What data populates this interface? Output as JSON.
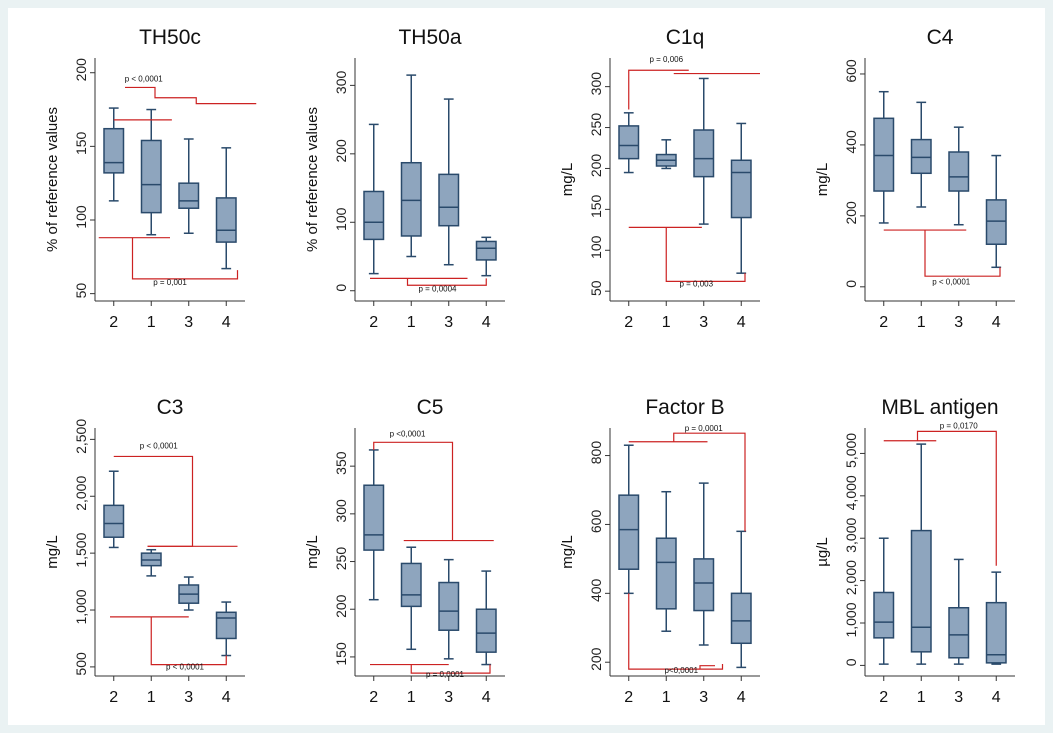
{
  "colors": {
    "background": "#eaf2f3",
    "panel": "#ffffff",
    "box_fill": "#8ea5be",
    "box_stroke": "#2a4a6b",
    "annotation": "#cc2222",
    "axis": "#333333"
  },
  "chart_data": [
    {
      "type": "box",
      "title": "TH50c",
      "ylabel": "% of reference values",
      "categories": [
        "2",
        "1",
        "3",
        "4"
      ],
      "ylim": [
        45,
        210
      ],
      "yticks": [
        50,
        100,
        150,
        200
      ],
      "ytick_labels": [
        "50",
        "100",
        "150",
        "200"
      ],
      "boxes": [
        {
          "min": 113,
          "q1": 132,
          "median": 139,
          "q3": 162,
          "max": 176
        },
        {
          "min": 90,
          "q1": 105,
          "median": 124,
          "q3": 154,
          "max": 175
        },
        {
          "min": 91,
          "q1": 108,
          "median": 113,
          "q3": 125,
          "max": 155
        },
        {
          "min": 67,
          "q1": 85,
          "median": 93,
          "q3": 115,
          "max": 149
        }
      ],
      "annotations": [
        {
          "text": "p < 0,0001",
          "position": "top"
        },
        {
          "text": "p = 0,001",
          "position": "bottom"
        }
      ]
    },
    {
      "type": "box",
      "title": "TH50a",
      "ylabel": "% of reference values",
      "categories": [
        "2",
        "1",
        "3",
        "4"
      ],
      "ylim": [
        -15,
        340
      ],
      "yticks": [
        0,
        100,
        200,
        300
      ],
      "ytick_labels": [
        "0",
        "100",
        "200",
        "300"
      ],
      "boxes": [
        {
          "min": 25,
          "q1": 75,
          "median": 100,
          "q3": 145,
          "max": 243
        },
        {
          "min": 50,
          "q1": 80,
          "median": 132,
          "q3": 187,
          "max": 315
        },
        {
          "min": 38,
          "q1": 95,
          "median": 122,
          "q3": 170,
          "max": 280
        },
        {
          "min": 22,
          "q1": 45,
          "median": 62,
          "q3": 72,
          "max": 78
        }
      ],
      "annotations": [
        {
          "text": "p = 0,0004",
          "position": "bottom"
        }
      ]
    },
    {
      "type": "box",
      "title": "C1q",
      "ylabel": "mg/L",
      "categories": [
        "2",
        "1",
        "3",
        "4"
      ],
      "ylim": [
        38,
        335
      ],
      "yticks": [
        50,
        100,
        150,
        200,
        250,
        300
      ],
      "ytick_labels": [
        "50",
        "100",
        "150",
        "200",
        "250",
        "300"
      ],
      "boxes": [
        {
          "min": 195,
          "q1": 212,
          "median": 228,
          "q3": 252,
          "max": 268
        },
        {
          "min": 200,
          "q1": 203,
          "median": 210,
          "q3": 217,
          "max": 235
        },
        {
          "min": 132,
          "q1": 190,
          "median": 212,
          "q3": 247,
          "max": 310
        },
        {
          "min": 72,
          "q1": 140,
          "median": 195,
          "q3": 210,
          "max": 255
        }
      ],
      "annotations": [
        {
          "text": "p = 0,006",
          "position": "top"
        },
        {
          "text": "p = 0,003",
          "position": "bottom"
        }
      ]
    },
    {
      "type": "box",
      "title": "C4",
      "ylabel": "mg/L",
      "categories": [
        "2",
        "1",
        "3",
        "4"
      ],
      "ylim": [
        -40,
        645
      ],
      "yticks": [
        0,
        200,
        400,
        600
      ],
      "ytick_labels": [
        "0",
        "200",
        "400",
        "600"
      ],
      "boxes": [
        {
          "min": 180,
          "q1": 270,
          "median": 370,
          "q3": 475,
          "max": 550
        },
        {
          "min": 225,
          "q1": 320,
          "median": 365,
          "q3": 415,
          "max": 520
        },
        {
          "min": 175,
          "q1": 270,
          "median": 310,
          "q3": 380,
          "max": 450
        },
        {
          "min": 55,
          "q1": 120,
          "median": 185,
          "q3": 245,
          "max": 370
        }
      ],
      "annotations": [
        {
          "text": "p < 0,0001",
          "position": "bottom"
        }
      ]
    },
    {
      "type": "box",
      "title": "C3",
      "ylabel": "mg/L",
      "categories": [
        "2",
        "1",
        "3",
        "4"
      ],
      "ylim": [
        420,
        2600
      ],
      "yticks": [
        500,
        1000,
        1500,
        2000,
        2500
      ],
      "ytick_labels": [
        "500",
        "1,000",
        "1,500",
        "2,000",
        "2,500"
      ],
      "boxes": [
        {
          "min": 1550,
          "q1": 1640,
          "median": 1760,
          "q3": 1920,
          "max": 2220
        },
        {
          "min": 1300,
          "q1": 1390,
          "median": 1440,
          "q3": 1500,
          "max": 1530
        },
        {
          "min": 1000,
          "q1": 1060,
          "median": 1140,
          "q3": 1220,
          "max": 1290
        },
        {
          "min": 600,
          "q1": 750,
          "median": 930,
          "q3": 980,
          "max": 1070
        }
      ],
      "annotations": [
        {
          "text": "p < 0,0001",
          "position": "top"
        },
        {
          "text": "p < 0,0001",
          "position": "bottom"
        }
      ]
    },
    {
      "type": "box",
      "title": "C5",
      "ylabel": "mg/L",
      "categories": [
        "2",
        "1",
        "3",
        "4"
      ],
      "ylim": [
        130,
        390
      ],
      "yticks": [
        150,
        200,
        250,
        300,
        350
      ],
      "ytick_labels": [
        "150",
        "200",
        "250",
        "300",
        "350"
      ],
      "boxes": [
        {
          "min": 210,
          "q1": 262,
          "median": 278,
          "q3": 330,
          "max": 367
        },
        {
          "min": 158,
          "q1": 203,
          "median": 215,
          "q3": 248,
          "max": 265
        },
        {
          "min": 148,
          "q1": 178,
          "median": 198,
          "q3": 228,
          "max": 252
        },
        {
          "min": 142,
          "q1": 155,
          "median": 175,
          "q3": 200,
          "max": 240
        }
      ],
      "annotations": [
        {
          "text": "p <0,0001",
          "position": "top"
        },
        {
          "text": "p = 0,0001",
          "position": "bottom"
        }
      ]
    },
    {
      "type": "box",
      "title": "Factor B",
      "ylabel": "mg/L",
      "categories": [
        "2",
        "1",
        "3",
        "4"
      ],
      "ylim": [
        160,
        880
      ],
      "yticks": [
        200,
        400,
        600,
        800
      ],
      "ytick_labels": [
        "200",
        "400",
        "600",
        "800"
      ],
      "boxes": [
        {
          "min": 400,
          "q1": 470,
          "median": 585,
          "q3": 685,
          "max": 830
        },
        {
          "min": 290,
          "q1": 355,
          "median": 490,
          "q3": 560,
          "max": 695
        },
        {
          "min": 250,
          "q1": 350,
          "median": 430,
          "q3": 500,
          "max": 720
        },
        {
          "min": 185,
          "q1": 255,
          "median": 320,
          "q3": 400,
          "max": 580
        }
      ],
      "annotations": [
        {
          "text": "p = 0,0001",
          "position": "top"
        },
        {
          "text": "p<0,0001",
          "position": "bottom"
        }
      ]
    },
    {
      "type": "box",
      "title": "MBL antigen",
      "ylabel": "µg/L",
      "categories": [
        "2",
        "1",
        "3",
        "4"
      ],
      "ylim": [
        -250,
        5600
      ],
      "yticks": [
        0,
        1000,
        2000,
        3000,
        4000,
        5000
      ],
      "ytick_labels": [
        "0",
        "1,000",
        "2,000",
        "3,000",
        "4,000",
        "5,000"
      ],
      "boxes": [
        {
          "min": 30,
          "q1": 650,
          "median": 1020,
          "q3": 1720,
          "max": 3000
        },
        {
          "min": 30,
          "q1": 320,
          "median": 900,
          "q3": 3180,
          "max": 5220
        },
        {
          "min": 30,
          "q1": 180,
          "median": 720,
          "q3": 1360,
          "max": 2500
        },
        {
          "min": 30,
          "q1": 60,
          "median": 250,
          "q3": 1480,
          "max": 2200
        }
      ],
      "annotations": [
        {
          "text": "p = 0,0170",
          "position": "top"
        }
      ]
    }
  ]
}
